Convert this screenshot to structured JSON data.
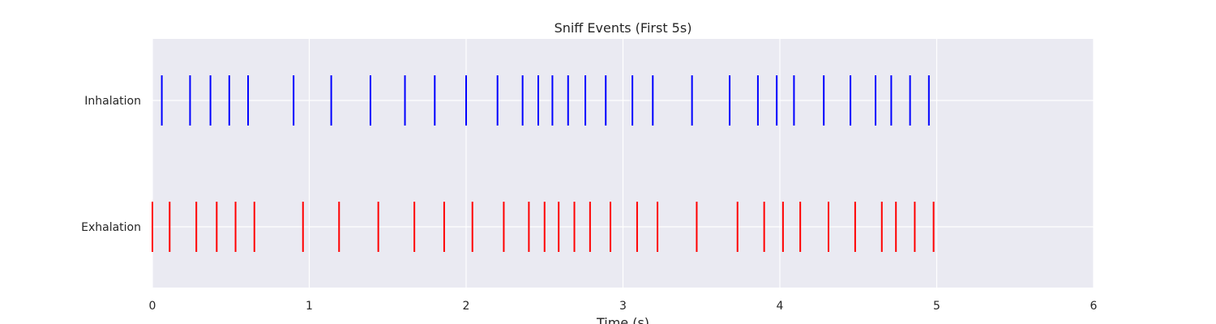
{
  "chart_data": {
    "type": "eventplot",
    "title": "Sniff Events (First 5s)",
    "xlabel": "Time (s)",
    "ylabel": "",
    "xlim": [
      0,
      6
    ],
    "xticks": [
      0,
      1,
      2,
      3,
      4,
      5,
      6
    ],
    "grid": true,
    "legend": "none",
    "categories": [
      "Inhalation",
      "Exhalation"
    ],
    "series": [
      {
        "category": "Inhalation",
        "color": "#0000ff",
        "events": [
          0.06,
          0.24,
          0.37,
          0.49,
          0.61,
          0.9,
          1.14,
          1.39,
          1.61,
          1.8,
          2.0,
          2.2,
          2.36,
          2.46,
          2.55,
          2.65,
          2.76,
          2.89,
          3.06,
          3.19,
          3.44,
          3.68,
          3.86,
          3.98,
          4.09,
          4.28,
          4.45,
          4.61,
          4.71,
          4.83,
          4.95
        ]
      },
      {
        "category": "Exhalation",
        "color": "#ff0000",
        "events": [
          0.0,
          0.11,
          0.28,
          0.41,
          0.53,
          0.65,
          0.96,
          1.19,
          1.44,
          1.67,
          1.86,
          2.04,
          2.24,
          2.4,
          2.5,
          2.59,
          2.69,
          2.79,
          2.92,
          3.09,
          3.22,
          3.47,
          3.73,
          3.9,
          4.02,
          4.13,
          4.31,
          4.48,
          4.65,
          4.74,
          4.86,
          4.98
        ]
      }
    ]
  }
}
